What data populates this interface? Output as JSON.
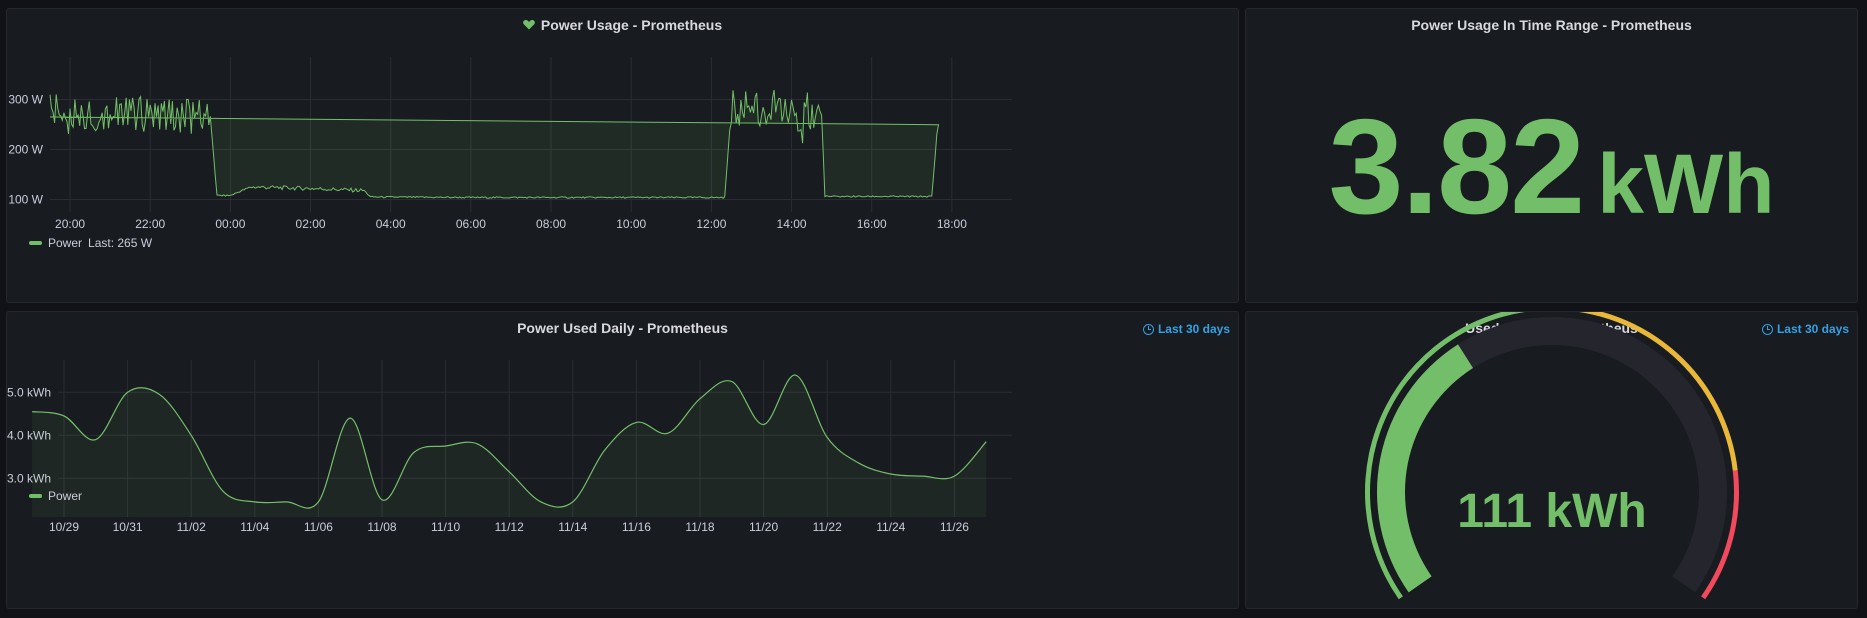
{
  "colors": {
    "green": "#73bf69",
    "yellow": "#eab839",
    "red": "#f2495c",
    "blue": "#33a2e5"
  },
  "panel_power_usage": {
    "title": "Power Usage - Prometheus",
    "icon": "heart-icon",
    "legend_label": "Power",
    "legend_last": "Last: 265 W"
  },
  "panel_time_range": {
    "title": "Power Usage In Time Range - Prometheus",
    "value": "3.82",
    "unit": "kWh"
  },
  "panel_daily": {
    "title": "Power Used Daily - Prometheus",
    "time_badge": "Last 30 days",
    "legend_label": "Power"
  },
  "panel_gauge": {
    "title": "Used power - Prometheus",
    "time_badge": "Last 30 days",
    "value": "111 kWh",
    "value_num": 111,
    "min": 0,
    "max": 300,
    "thresholds": [
      {
        "value": 0,
        "color": "#73bf69"
      },
      {
        "value": 150,
        "color": "#eab839"
      },
      {
        "value": 250,
        "color": "#f2495c"
      }
    ]
  },
  "chart_data": [
    {
      "type": "line",
      "title": "Power Usage - Prometheus",
      "x_ticks": [
        "20:00",
        "22:00",
        "00:00",
        "02:00",
        "04:00",
        "06:00",
        "08:00",
        "10:00",
        "12:00",
        "14:00",
        "16:00",
        "18:00"
      ],
      "y_ticks": [
        "100 W",
        "200 W",
        "300 W"
      ],
      "ylim": [
        75,
        385
      ],
      "series": [
        {
          "name": "Power",
          "x": [
            "19:30",
            "20:00",
            "21:00",
            "22:00",
            "23:30",
            "23:40",
            "00:00",
            "00:30",
            "02:00",
            "03:20",
            "03:30",
            "06:00",
            "10:00",
            "12:20",
            "12:30",
            "14:00",
            "14:45",
            "14:50",
            "17:30",
            "17:40",
            "19:30"
          ],
          "y": [
            280,
            265,
            275,
            270,
            265,
            108,
            108,
            125,
            122,
            118,
            105,
            104,
            104,
            104,
            285,
            270,
            270,
            106,
            106,
            270,
            265
          ]
        }
      ]
    },
    {
      "type": "area",
      "title": "Power Used Daily - Prometheus",
      "x_ticks": [
        "10/29",
        "10/31",
        "11/02",
        "11/04",
        "11/06",
        "11/08",
        "11/10",
        "11/12",
        "11/14",
        "11/16",
        "11/18",
        "11/20",
        "11/22",
        "11/24",
        "11/26"
      ],
      "y_ticks": [
        "3.0 kWh",
        "4.0 kWh",
        "5.0 kWh"
      ],
      "ylim": [
        2.1,
        5.75
      ],
      "series": [
        {
          "name": "Power",
          "x": [
            "10/28",
            "10/29",
            "10/30",
            "10/31",
            "11/01",
            "11/02",
            "11/03",
            "11/04",
            "11/05",
            "11/06",
            "11/07",
            "11/08",
            "11/09",
            "11/10",
            "11/11",
            "11/12",
            "11/13",
            "11/14",
            "11/15",
            "11/16",
            "11/17",
            "11/18",
            "11/19",
            "11/20",
            "11/21",
            "11/22",
            "11/23",
            "11/24",
            "11/25",
            "11/26",
            "11/27"
          ],
          "y": [
            4.55,
            4.45,
            3.9,
            5.0,
            4.95,
            4.0,
            2.7,
            2.45,
            2.45,
            2.45,
            4.4,
            2.5,
            3.6,
            3.75,
            3.8,
            3.15,
            2.45,
            2.45,
            3.65,
            4.3,
            4.05,
            4.85,
            5.25,
            4.25,
            5.4,
            3.95,
            3.35,
            3.1,
            3.05,
            3.05,
            3.85
          ]
        }
      ]
    }
  ]
}
